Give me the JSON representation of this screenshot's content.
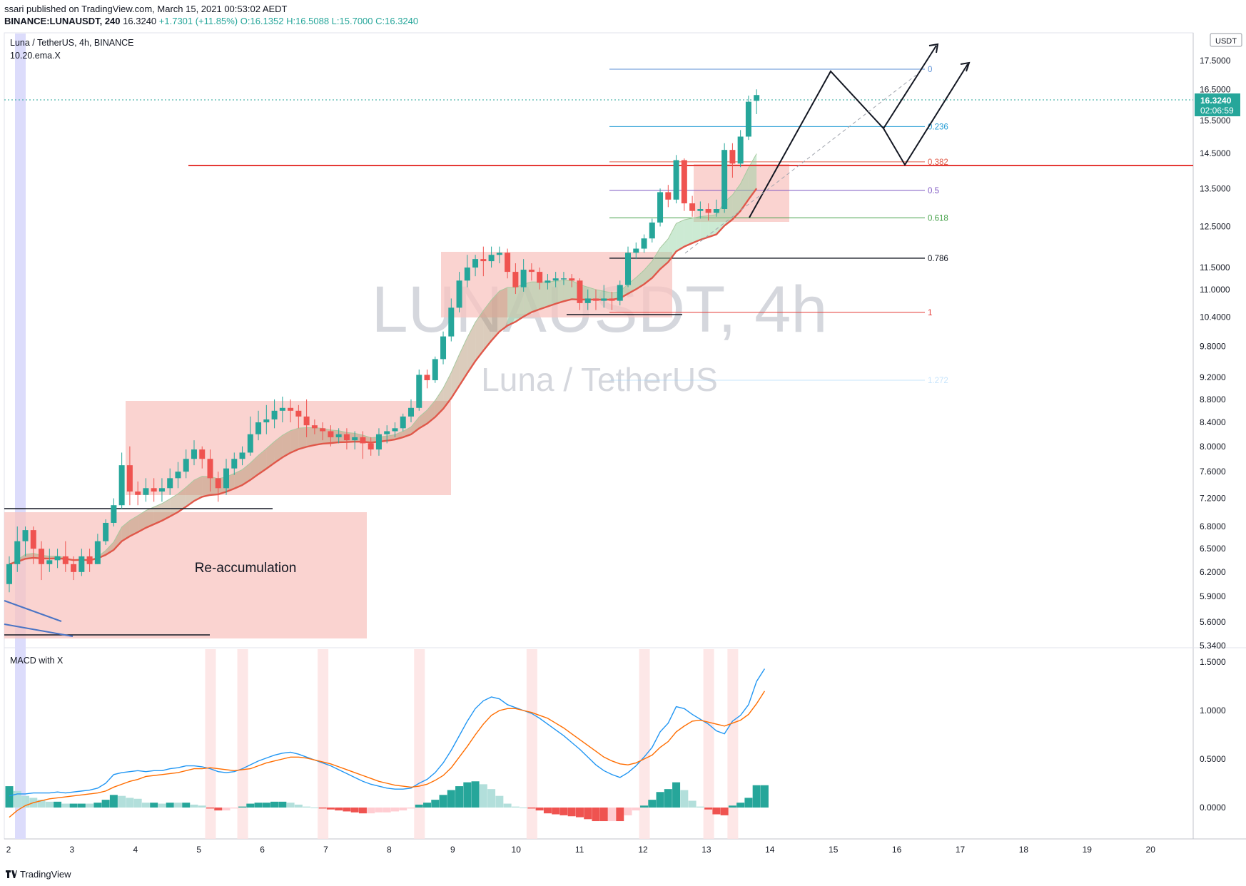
{
  "header": {
    "publisher": "ssari published on TradingView.com, March 15, 2021 00:53:02 AEDT",
    "symbol_line": "BINANCE:LUNAUSDT, 240",
    "price": "16.3240",
    "change": "+1.7301 (+11.85%)",
    "ohlc": "O:16.1352 H:16.5088 L:15.7000 C:16.3240"
  },
  "legend": {
    "title": "Luna / TetherUS, 4h, BINANCE",
    "indicator": "10.20.ema.X",
    "macd": "MACD with X"
  },
  "watermark": {
    "ticker": "LUNAUSDT, 4h",
    "name": "Luna / TetherUS"
  },
  "annotation": "Re-accumulation",
  "currency": "USDT",
  "last_price_tag": {
    "price": "16.3240",
    "countdown": "02:06:59"
  },
  "footer": "TradingView",
  "colors": {
    "up": "#26a69a",
    "down": "#ef5350",
    "zone": "#f8c4c0",
    "ema_fast": "#c9a98a",
    "ema_slow": "#e0584a",
    "macd": "#2196f3",
    "signal": "#ff6d00",
    "resistance": "#e53935"
  },
  "chart_data": {
    "type": "candlestick",
    "timeframe": "4h",
    "x_labels": [
      "2",
      "3",
      "4",
      "5",
      "6",
      "7",
      "8",
      "9",
      "10",
      "11",
      "12",
      "13",
      "14",
      "15",
      "16",
      "17",
      "18",
      "19",
      "20"
    ],
    "price_axis_labels": [
      "17.5000",
      "16.5000",
      "15.5000",
      "14.5000",
      "13.5000",
      "12.5000",
      "11.5000",
      "11.0000",
      "10.4000",
      "9.8000",
      "9.2000",
      "8.8000",
      "8.4000",
      "8.0000",
      "7.6000",
      "7.2000",
      "6.8000",
      "6.5000",
      "6.2000",
      "5.9000",
      "5.6000",
      "5.3400"
    ],
    "price_scale": "log",
    "ylim": [
      5.34,
      19.0
    ],
    "candles": [
      [
        6.05,
        6.3,
        5.95,
        6.4
      ],
      [
        6.3,
        6.6,
        6.2,
        6.8
      ],
      [
        6.6,
        6.75,
        6.4,
        6.8
      ],
      [
        6.75,
        6.5,
        6.3,
        6.8
      ],
      [
        6.5,
        6.3,
        6.1,
        6.6
      ],
      [
        6.3,
        6.35,
        6.2,
        6.5
      ],
      [
        6.35,
        6.4,
        6.25,
        6.5
      ],
      [
        6.4,
        6.3,
        6.2,
        6.6
      ],
      [
        6.3,
        6.2,
        6.1,
        6.4
      ],
      [
        6.2,
        6.4,
        6.15,
        6.5
      ],
      [
        6.4,
        6.3,
        6.2,
        6.5
      ],
      [
        6.3,
        6.6,
        6.3,
        6.7
      ],
      [
        6.6,
        6.85,
        6.55,
        6.9
      ],
      [
        6.85,
        7.1,
        6.8,
        7.2
      ],
      [
        7.1,
        7.7,
        7.05,
        7.9
      ],
      [
        7.7,
        7.3,
        7.1,
        8.0
      ],
      [
        7.3,
        7.25,
        7.1,
        7.45
      ],
      [
        7.25,
        7.35,
        7.15,
        7.5
      ],
      [
        7.35,
        7.3,
        7.15,
        7.5
      ],
      [
        7.3,
        7.35,
        7.15,
        7.5
      ],
      [
        7.35,
        7.5,
        7.25,
        7.65
      ],
      [
        7.5,
        7.6,
        7.35,
        7.75
      ],
      [
        7.6,
        7.8,
        7.5,
        7.95
      ],
      [
        7.8,
        7.95,
        7.7,
        8.1
      ],
      [
        7.95,
        7.8,
        7.65,
        8.0
      ],
      [
        7.8,
        7.5,
        7.3,
        7.95
      ],
      [
        7.5,
        7.35,
        7.15,
        7.6
      ],
      [
        7.35,
        7.65,
        7.25,
        7.8
      ],
      [
        7.65,
        7.8,
        7.55,
        7.9
      ],
      [
        7.8,
        7.9,
        7.7,
        8.0
      ],
      [
        7.9,
        8.2,
        7.85,
        8.5
      ],
      [
        8.2,
        8.4,
        8.1,
        8.6
      ],
      [
        8.4,
        8.45,
        8.2,
        8.7
      ],
      [
        8.45,
        8.6,
        8.3,
        8.8
      ],
      [
        8.6,
        8.65,
        8.4,
        8.85
      ],
      [
        8.65,
        8.6,
        8.4,
        8.8
      ],
      [
        8.6,
        8.5,
        8.3,
        8.7
      ],
      [
        8.5,
        8.35,
        8.15,
        8.8
      ],
      [
        8.35,
        8.3,
        8.2,
        8.45
      ],
      [
        8.3,
        8.25,
        8.1,
        8.4
      ],
      [
        8.25,
        8.15,
        8.0,
        8.35
      ],
      [
        8.15,
        8.2,
        8.05,
        8.3
      ],
      [
        8.2,
        8.1,
        7.95,
        8.3
      ],
      [
        8.1,
        8.15,
        7.95,
        8.25
      ],
      [
        8.15,
        8.05,
        7.8,
        8.25
      ],
      [
        8.05,
        7.95,
        7.85,
        8.15
      ],
      [
        7.95,
        8.2,
        7.85,
        8.3
      ],
      [
        8.2,
        8.25,
        8.05,
        8.35
      ],
      [
        8.25,
        8.3,
        8.15,
        8.4
      ],
      [
        8.3,
        8.5,
        8.25,
        8.55
      ],
      [
        8.5,
        8.65,
        8.4,
        8.8
      ],
      [
        8.65,
        9.25,
        8.6,
        9.35
      ],
      [
        9.25,
        9.15,
        9.0,
        9.35
      ],
      [
        9.15,
        9.55,
        9.1,
        9.6
      ],
      [
        9.55,
        10.0,
        9.45,
        10.1
      ],
      [
        10.0,
        10.6,
        9.9,
        10.8
      ],
      [
        10.6,
        11.2,
        10.5,
        11.4
      ],
      [
        11.2,
        11.5,
        11.05,
        11.8
      ],
      [
        11.5,
        11.7,
        11.3,
        11.8
      ],
      [
        11.7,
        11.65,
        11.3,
        12.0
      ],
      [
        11.65,
        11.8,
        11.5,
        12.0
      ],
      [
        11.8,
        11.85,
        11.6,
        12.0
      ],
      [
        11.85,
        11.4,
        11.25,
        11.95
      ],
      [
        11.4,
        11.05,
        10.9,
        11.6
      ],
      [
        11.05,
        11.45,
        10.95,
        11.7
      ],
      [
        11.45,
        11.4,
        11.2,
        11.6
      ],
      [
        11.4,
        11.15,
        11.0,
        11.5
      ],
      [
        11.15,
        11.2,
        11.0,
        11.35
      ],
      [
        11.2,
        11.25,
        11.05,
        11.4
      ],
      [
        11.25,
        11.25,
        11.1,
        11.4
      ],
      [
        11.25,
        11.2,
        11.05,
        11.35
      ],
      [
        11.2,
        10.7,
        10.55,
        11.25
      ],
      [
        10.7,
        10.8,
        10.55,
        11.0
      ],
      [
        10.8,
        10.75,
        10.55,
        11.0
      ],
      [
        10.75,
        10.8,
        10.6,
        11.1
      ],
      [
        10.8,
        10.75,
        10.55,
        10.95
      ],
      [
        10.75,
        11.1,
        10.65,
        11.2
      ],
      [
        11.1,
        11.85,
        11.05,
        12.0
      ],
      [
        11.85,
        11.95,
        11.7,
        12.1
      ],
      [
        11.95,
        12.2,
        11.85,
        12.3
      ],
      [
        12.2,
        12.6,
        12.1,
        12.7
      ],
      [
        12.6,
        13.4,
        12.5,
        13.5
      ],
      [
        13.4,
        13.2,
        13.0,
        13.6
      ],
      [
        13.2,
        14.3,
        13.1,
        14.45
      ],
      [
        14.3,
        13.1,
        12.9,
        14.35
      ],
      [
        13.1,
        12.9,
        12.75,
        13.3
      ],
      [
        12.9,
        12.95,
        12.7,
        13.15
      ],
      [
        12.95,
        12.85,
        12.65,
        13.1
      ],
      [
        12.85,
        12.95,
        12.75,
        13.2
      ],
      [
        12.95,
        14.6,
        12.85,
        14.8
      ],
      [
        14.6,
        14.2,
        13.8,
        14.8
      ],
      [
        14.2,
        15.0,
        14.1,
        15.2
      ],
      [
        15.0,
        16.1,
        14.9,
        16.3
      ],
      [
        16.13,
        16.32,
        15.7,
        16.51
      ]
    ],
    "fib_levels": [
      {
        "label": "0",
        "price": 17.2
      },
      {
        "label": "0.236",
        "price": 15.31
      },
      {
        "label": "0.382",
        "price": 14.25
      },
      {
        "label": "0.5",
        "price": 13.45
      },
      {
        "label": "0.618",
        "price": 12.72
      },
      {
        "label": "0.786",
        "price": 11.72
      },
      {
        "label": "1",
        "price": 10.5
      },
      {
        "label": "1.272",
        "price": 9.15
      }
    ],
    "resistance_level": 14.25,
    "macd": {
      "axis_labels": [
        "1.5000",
        "1.0000",
        "0.5000",
        "0.0000"
      ],
      "ylim": [
        -0.32,
        1.58
      ],
      "macd_line": [
        0.12,
        0.14,
        0.14,
        0.15,
        0.15,
        0.15,
        0.16,
        0.15,
        0.16,
        0.17,
        0.18,
        0.2,
        0.25,
        0.34,
        0.36,
        0.37,
        0.38,
        0.37,
        0.38,
        0.38,
        0.4,
        0.41,
        0.43,
        0.43,
        0.42,
        0.4,
        0.37,
        0.36,
        0.37,
        0.4,
        0.44,
        0.48,
        0.51,
        0.54,
        0.56,
        0.57,
        0.55,
        0.52,
        0.49,
        0.46,
        0.43,
        0.39,
        0.35,
        0.31,
        0.27,
        0.24,
        0.22,
        0.2,
        0.19,
        0.19,
        0.2,
        0.25,
        0.29,
        0.36,
        0.46,
        0.59,
        0.74,
        0.89,
        1.02,
        1.1,
        1.14,
        1.12,
        1.06,
        1.03,
        1.0,
        0.97,
        0.92,
        0.86,
        0.8,
        0.74,
        0.67,
        0.6,
        0.52,
        0.44,
        0.38,
        0.34,
        0.31,
        0.36,
        0.43,
        0.52,
        0.62,
        0.78,
        0.87,
        1.04,
        1.02,
        0.96,
        0.91,
        0.86,
        0.79,
        0.76,
        0.89,
        0.95,
        1.06,
        1.3,
        1.43
      ],
      "signal_line": [
        -0.1,
        -0.03,
        0.02,
        0.05,
        0.07,
        0.09,
        0.1,
        0.11,
        0.12,
        0.13,
        0.14,
        0.15,
        0.17,
        0.21,
        0.24,
        0.27,
        0.29,
        0.32,
        0.33,
        0.34,
        0.35,
        0.36,
        0.38,
        0.4,
        0.4,
        0.41,
        0.4,
        0.39,
        0.38,
        0.39,
        0.4,
        0.43,
        0.46,
        0.48,
        0.5,
        0.52,
        0.52,
        0.51,
        0.49,
        0.47,
        0.45,
        0.42,
        0.39,
        0.36,
        0.33,
        0.3,
        0.27,
        0.25,
        0.23,
        0.22,
        0.21,
        0.22,
        0.24,
        0.28,
        0.33,
        0.41,
        0.52,
        0.63,
        0.75,
        0.86,
        0.95,
        1.0,
        1.02,
        1.02,
        1.0,
        0.98,
        0.95,
        0.92,
        0.87,
        0.82,
        0.76,
        0.7,
        0.64,
        0.58,
        0.52,
        0.48,
        0.45,
        0.44,
        0.46,
        0.5,
        0.54,
        0.62,
        0.68,
        0.78,
        0.84,
        0.89,
        0.9,
        0.88,
        0.86,
        0.84,
        0.87,
        0.9,
        0.96,
        1.07,
        1.2
      ]
    }
  }
}
